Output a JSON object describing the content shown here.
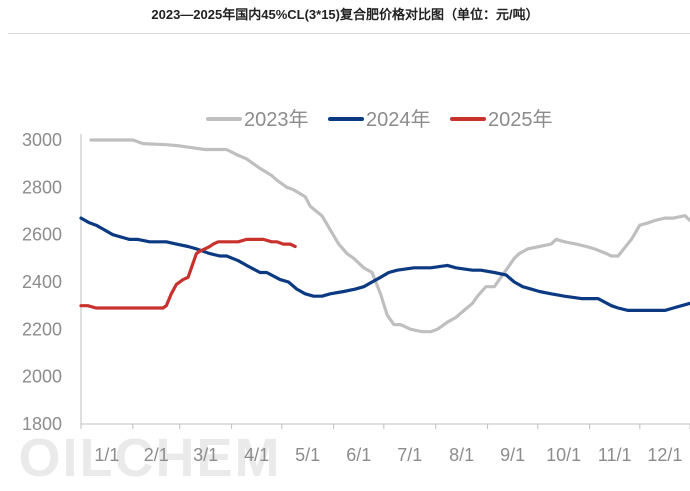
{
  "title": "2023—2025年国内45%CL(3*15)复合肥价格对比图（单位：元/吨）",
  "watermark": "OILCHEM",
  "colors": {
    "2023年": "#bfbfbf",
    "2024年": "#0b3a82",
    "2025年": "#c8322d"
  },
  "chart_data": {
    "type": "line",
    "title": "2023—2025年国内45%CL(3*15)复合肥价格对比图（单位：元/吨）",
    "xlabel": "",
    "ylabel": "",
    "x_tick_labels": [
      "1/1",
      "2/1",
      "3/1",
      "4/1",
      "5/1",
      "6/1",
      "7/1",
      "8/1",
      "9/1",
      "10/1",
      "11/1",
      "12/1"
    ],
    "x_unit": "day of year (1 = Jan 1)",
    "xlim": [
      1,
      365
    ],
    "yticks": [
      1800,
      2000,
      2200,
      2400,
      2600,
      2800,
      3000
    ],
    "ylim": [
      1800,
      3000
    ],
    "grid": false,
    "legend_position": "top",
    "series": [
      {
        "name": "2023年",
        "color": "#bfbfbf",
        "x": [
          7,
          32,
          38,
          52,
          60,
          75,
          80,
          88,
          95,
          100,
          108,
          115,
          118,
          124,
          128,
          135,
          138,
          145,
          150,
          155,
          160,
          164,
          170,
          175,
          180,
          184,
          188,
          192,
          198,
          205,
          210,
          214,
          220,
          225,
          230,
          235,
          238,
          243,
          248,
          255,
          260,
          263,
          268,
          275,
          282,
          285,
          290,
          297,
          303,
          308,
          315,
          318,
          322,
          330,
          335,
          340,
          344,
          350,
          355,
          362,
          365
        ],
        "y": [
          3000,
          3000,
          2985,
          2980,
          2975,
          2960,
          2960,
          2960,
          2935,
          2920,
          2880,
          2850,
          2830,
          2800,
          2790,
          2760,
          2720,
          2680,
          2620,
          2560,
          2520,
          2500,
          2460,
          2440,
          2350,
          2260,
          2220,
          2220,
          2200,
          2190,
          2190,
          2200,
          2230,
          2250,
          2280,
          2310,
          2340,
          2380,
          2380,
          2450,
          2500,
          2520,
          2540,
          2550,
          2560,
          2580,
          2570,
          2560,
          2550,
          2540,
          2520,
          2510,
          2510,
          2580,
          2640,
          2650,
          2660,
          2670,
          2670,
          2680,
          2660
        ]
      },
      {
        "name": "2024年",
        "color": "#0b3a82",
        "x": [
          1,
          6,
          10,
          15,
          20,
          30,
          35,
          42,
          52,
          58,
          65,
          70,
          78,
          84,
          88,
          95,
          100,
          108,
          112,
          120,
          125,
          130,
          135,
          140,
          145,
          150,
          158,
          165,
          170,
          175,
          180,
          185,
          190,
          200,
          210,
          220,
          225,
          235,
          240,
          248,
          255,
          260,
          265,
          270,
          275,
          282,
          290,
          300,
          310,
          318,
          322,
          328,
          335,
          340,
          345,
          350,
          355,
          360,
          365
        ],
        "y": [
          2670,
          2650,
          2640,
          2620,
          2600,
          2580,
          2580,
          2570,
          2570,
          2560,
          2550,
          2540,
          2520,
          2510,
          2510,
          2490,
          2470,
          2440,
          2440,
          2410,
          2400,
          2370,
          2350,
          2340,
          2340,
          2350,
          2360,
          2370,
          2380,
          2400,
          2420,
          2440,
          2450,
          2460,
          2460,
          2470,
          2460,
          2450,
          2450,
          2440,
          2430,
          2400,
          2380,
          2370,
          2360,
          2350,
          2340,
          2330,
          2330,
          2300,
          2290,
          2280,
          2280,
          2280,
          2280,
          2280,
          2290,
          2300,
          2310
        ]
      },
      {
        "name": "2025年",
        "color": "#c8322d",
        "x": [
          1,
          5,
          10,
          15,
          20,
          30,
          40,
          50,
          52,
          55,
          58,
          62,
          65,
          67,
          70,
          72,
          75,
          78,
          80,
          83,
          86,
          90,
          95,
          100,
          105,
          110,
          115,
          118,
          122,
          126,
          129
        ],
        "y": [
          2300,
          2300,
          2290,
          2290,
          2290,
          2290,
          2290,
          2290,
          2300,
          2350,
          2390,
          2410,
          2420,
          2460,
          2520,
          2530,
          2540,
          2550,
          2560,
          2570,
          2570,
          2570,
          2570,
          2580,
          2580,
          2580,
          2570,
          2570,
          2560,
          2560,
          2550
        ]
      }
    ]
  }
}
